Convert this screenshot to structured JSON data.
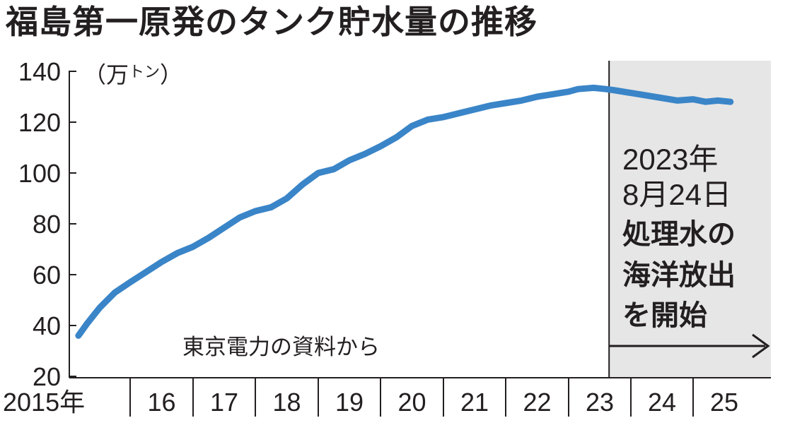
{
  "title": "福島第一原発のタンク貯水量の推移",
  "chart_data": {
    "type": "line",
    "title": "福島第一原発のタンク貯水量の推移",
    "ylabel_open": "（万",
    "ylabel_small": "トン",
    "ylabel_close": "）",
    "ylim": [
      20,
      140
    ],
    "yticks": [
      140,
      120,
      100,
      80,
      60,
      40,
      20
    ],
    "xlim": [
      2015.0,
      2026.0
    ],
    "xtick_labels": [
      "2015年",
      "16",
      "17",
      "18",
      "19",
      "20",
      "21",
      "22",
      "23",
      "24",
      "25"
    ],
    "source": "東京電力の資料から",
    "series": [
      {
        "color": "#3a85c8",
        "x": [
          2015.15,
          2015.3,
          2015.5,
          2015.75,
          2016.0,
          2016.25,
          2016.5,
          2016.75,
          2017.0,
          2017.25,
          2017.5,
          2017.75,
          2018.0,
          2018.25,
          2018.5,
          2018.75,
          2019.0,
          2019.25,
          2019.5,
          2019.75,
          2020.0,
          2020.25,
          2020.5,
          2020.75,
          2021.0,
          2021.25,
          2021.5,
          2021.75,
          2022.0,
          2022.25,
          2022.5,
          2022.75,
          2023.0,
          2023.15,
          2023.4,
          2023.6,
          2023.75,
          2024.0,
          2024.25,
          2024.5,
          2024.75,
          2025.0,
          2025.2,
          2025.4,
          2025.6
        ],
        "y": [
          36,
          41,
          47,
          53,
          57,
          61,
          65,
          68.5,
          71,
          74.5,
          78.5,
          82.5,
          85,
          86.5,
          90,
          95.5,
          100,
          101.5,
          105,
          107.5,
          110.5,
          114,
          118.5,
          121,
          122,
          123.5,
          125,
          126.5,
          127.5,
          128.5,
          130,
          131,
          132,
          133,
          133.5,
          133,
          132.5,
          131.5,
          130.5,
          129.5,
          128.5,
          129,
          128,
          128.5,
          128
        ]
      }
    ],
    "annotation": {
      "date_line1": "2023年",
      "date_line2": "8月24日",
      "text_lines": [
        "処理水の",
        "海洋放出",
        "を開始"
      ],
      "start_x": 2023.65,
      "shade_color": "#e6e6e6"
    }
  }
}
